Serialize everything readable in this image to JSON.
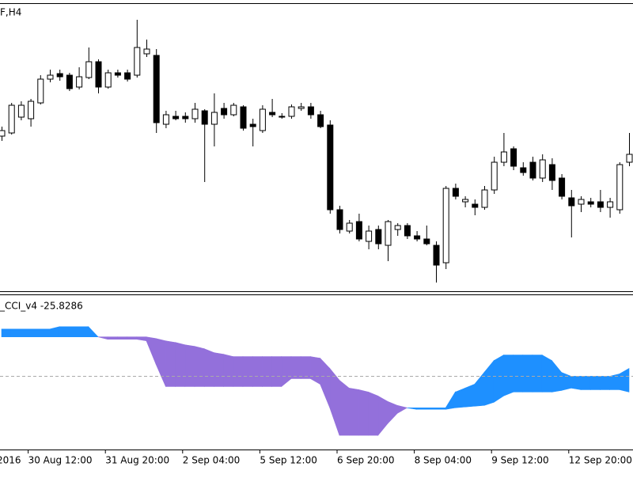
{
  "chart_data": {
    "type": "candlestick",
    "title": "F,H4",
    "ylim": [
      0,
      363
    ],
    "cut_label": "2016",
    "categories": [
      null,
      null,
      null,
      "30 Aug 12:00",
      null,
      null,
      null,
      null,
      null,
      null,
      null,
      "31 Aug 20:00",
      null,
      null,
      null,
      null,
      null,
      null,
      null,
      "2 Sep 04:00",
      null,
      null,
      null,
      null,
      null,
      null,
      null,
      "5 Sep 12:00",
      null,
      null,
      null,
      null,
      null,
      null,
      null,
      "6 Sep 20:00",
      null,
      null,
      null,
      null,
      null,
      null,
      null,
      "8 Sep 04:00",
      null,
      null,
      null,
      null,
      null,
      null,
      null,
      "9 Sep 12:00",
      null,
      null,
      null,
      null,
      null,
      null,
      null,
      "12 Sep 20:00",
      null,
      null,
      null,
      null,
      null,
      null
    ],
    "open": [
      196,
      200,
      220,
      218,
      238,
      268,
      275,
      273,
      258,
      270,
      290,
      258,
      276,
      276,
      273,
      300,
      298,
      211,
      221,
      221,
      218,
      228,
      211,
      231,
      223,
      233,
      211,
      203,
      226,
      221,
      221,
      231,
      233,
      223,
      210,
      103,
      76,
      88,
      63,
      78,
      58,
      78,
      83,
      70,
      66,
      58,
      36,
      130,
      113,
      110,
      106,
      128,
      163,
      180,
      156,
      163,
      143,
      160,
      143,
      118,
      110,
      113,
      113,
      106,
      103,
      163
    ],
    "high": [
      208,
      238,
      240,
      243,
      273,
      280,
      280,
      276,
      283,
      308,
      293,
      280,
      280,
      280,
      343,
      318,
      306,
      228,
      228,
      226,
      238,
      230,
      250,
      238,
      238,
      235,
      218,
      235,
      243,
      225,
      236,
      238,
      238,
      228,
      216,
      108,
      90,
      98,
      83,
      83,
      90,
      86,
      86,
      76,
      83,
      63,
      133,
      136,
      120,
      116,
      133,
      170,
      200,
      183,
      163,
      170,
      173,
      168,
      148,
      128,
      120,
      118,
      128,
      118,
      163,
      200
    ],
    "low": [
      190,
      198,
      216,
      208,
      236,
      264,
      266,
      253,
      255,
      268,
      250,
      256,
      270,
      265,
      270,
      296,
      200,
      206,
      216,
      213,
      213,
      138,
      183,
      218,
      221,
      203,
      183,
      200,
      220,
      218,
      218,
      228,
      218,
      206,
      98,
      73,
      73,
      63,
      53,
      53,
      38,
      70,
      66,
      63,
      58,
      11,
      28,
      116,
      106,
      96,
      103,
      123,
      158,
      153,
      146,
      140,
      138,
      128,
      116,
      68,
      100,
      106,
      100,
      93,
      98,
      158
    ],
    "close": [
      203,
      235,
      235,
      240,
      268,
      273,
      271,
      256,
      271,
      290,
      258,
      276,
      273,
      268,
      308,
      306,
      213,
      223,
      218,
      218,
      230,
      211,
      226,
      223,
      235,
      206,
      208,
      230,
      223,
      220,
      233,
      233,
      223,
      208,
      103,
      78,
      86,
      66,
      76,
      60,
      88,
      83,
      70,
      66,
      60,
      33,
      130,
      120,
      116,
      106,
      128,
      163,
      176,
      158,
      150,
      143,
      166,
      140,
      120,
      108,
      116,
      110,
      106,
      113,
      160,
      173
    ],
    "indicator": {
      "title": "_CCI_v4 -25.8286",
      "ylim": [
        -93,
        103
      ],
      "zero": 0,
      "up_color": "#1e90ff",
      "down_color": "#9370db",
      "fast": [
        60,
        60,
        60,
        60,
        60,
        60,
        63,
        63,
        63,
        63,
        50,
        47,
        47,
        47,
        47,
        45,
        15,
        -13,
        -13,
        -13,
        -13,
        -13,
        -13,
        -13,
        -13,
        -13,
        -13,
        -13,
        -13,
        -13,
        -3,
        -3,
        -3,
        -10,
        -40,
        -75,
        -75,
        -75,
        -75,
        -75,
        -60,
        -47,
        -40,
        -40,
        -40,
        -40,
        -40,
        -20,
        -15,
        -10,
        5,
        20,
        27,
        27,
        27,
        27,
        27,
        20,
        5,
        0,
        0,
        0,
        0,
        0,
        3,
        10
      ],
      "slow": [
        50,
        50,
        50,
        50,
        50,
        50,
        50,
        50,
        50,
        50,
        50,
        50,
        50,
        50,
        50,
        50,
        48,
        45,
        43,
        40,
        38,
        35,
        30,
        28,
        25,
        25,
        25,
        25,
        25,
        25,
        25,
        25,
        25,
        23,
        10,
        -5,
        -15,
        -17,
        -20,
        -25,
        -32,
        -37,
        -40,
        -42,
        -42,
        -42,
        -42,
        -40,
        -39,
        -38,
        -37,
        -33,
        -25,
        -20,
        -20,
        -20,
        -20,
        -20,
        -18,
        -15,
        -17,
        -17,
        -17,
        -17,
        -17,
        -20
      ]
    }
  }
}
